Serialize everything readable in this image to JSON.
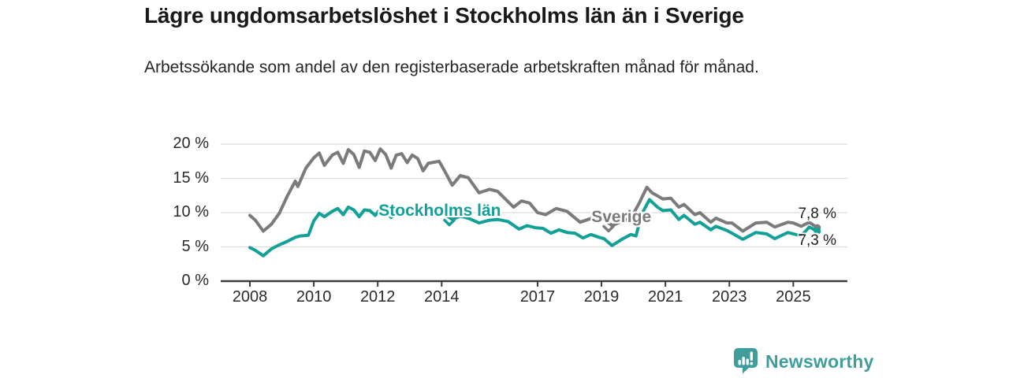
{
  "chart_data": {
    "type": "line",
    "title": "Lägre ungdomsarbetslöshet i Stockholms län än i Sverige",
    "subtitle": "Arbetssökande som andel av den registerbaserade arbetskraften månad för månad.",
    "unit": "%",
    "xlabel": "",
    "ylabel": "",
    "ylim": [
      0,
      20
    ],
    "x_range": [
      2008,
      2025.75
    ],
    "grid": "horizontal",
    "legend_position": "inline-annotations",
    "y_ticks": [
      {
        "value": 0,
        "label": "0 %"
      },
      {
        "value": 5,
        "label": "5 %"
      },
      {
        "value": 10,
        "label": "10 %"
      },
      {
        "value": 15,
        "label": "15 %"
      },
      {
        "value": 20,
        "label": "20 %"
      }
    ],
    "x_ticks": [
      {
        "value": 2008,
        "label": "2008"
      },
      {
        "value": 2010,
        "label": "2010"
      },
      {
        "value": 2012,
        "label": "2012"
      },
      {
        "value": 2014,
        "label": "2014"
      },
      {
        "value": 2017,
        "label": "2017"
      },
      {
        "value": 2019,
        "label": "2019"
      },
      {
        "value": 2021,
        "label": "2021"
      },
      {
        "value": 2023,
        "label": "2023"
      },
      {
        "value": 2025,
        "label": "2025"
      }
    ],
    "series": [
      {
        "name": "Sverige",
        "color": "#7b7b7b",
        "end_label": "7,8 %",
        "end_label_dy": -17,
        "points": [
          [
            2008.0,
            9.6
          ],
          [
            2008.17,
            8.9
          ],
          [
            2008.42,
            7.3
          ],
          [
            2008.67,
            8.3
          ],
          [
            2008.92,
            9.9
          ],
          [
            2009.17,
            12.4
          ],
          [
            2009.42,
            14.6
          ],
          [
            2009.5,
            13.8
          ],
          [
            2009.75,
            16.5
          ],
          [
            2010.0,
            18.0
          ],
          [
            2010.17,
            18.7
          ],
          [
            2010.33,
            16.9
          ],
          [
            2010.58,
            18.4
          ],
          [
            2010.75,
            18.8
          ],
          [
            2010.92,
            17.2
          ],
          [
            2011.08,
            19.2
          ],
          [
            2011.25,
            18.5
          ],
          [
            2011.42,
            16.6
          ],
          [
            2011.58,
            19.0
          ],
          [
            2011.75,
            18.8
          ],
          [
            2011.92,
            17.6
          ],
          [
            2012.08,
            19.3
          ],
          [
            2012.25,
            18.5
          ],
          [
            2012.42,
            16.5
          ],
          [
            2012.58,
            18.4
          ],
          [
            2012.75,
            18.6
          ],
          [
            2012.92,
            17.3
          ],
          [
            2013.08,
            18.4
          ],
          [
            2013.25,
            17.9
          ],
          [
            2013.42,
            16.1
          ],
          [
            2013.58,
            17.2
          ],
          [
            2013.92,
            17.5
          ],
          [
            2014.08,
            16.2
          ],
          [
            2014.33,
            14.0
          ],
          [
            2014.58,
            15.4
          ],
          [
            2014.83,
            15.1
          ],
          [
            2015.17,
            12.9
          ],
          [
            2015.5,
            13.4
          ],
          [
            2015.75,
            13.1
          ],
          [
            2016.25,
            10.8
          ],
          [
            2016.5,
            11.7
          ],
          [
            2016.75,
            11.4
          ],
          [
            2017.0,
            10.0
          ],
          [
            2017.25,
            9.7
          ],
          [
            2017.58,
            10.6
          ],
          [
            2017.92,
            10.2
          ],
          [
            2018.33,
            8.6
          ],
          [
            2018.83,
            9.4
          ],
          [
            2019.08,
            9.0
          ],
          [
            2019.33,
            8.1
          ],
          [
            2019.67,
            8.8
          ],
          [
            2019.92,
            9.2
          ],
          [
            2020.17,
            11.3
          ],
          [
            2020.42,
            13.7
          ],
          [
            2020.58,
            12.9
          ],
          [
            2020.92,
            12.0
          ],
          [
            2021.17,
            12.1
          ],
          [
            2021.42,
            10.8
          ],
          [
            2021.58,
            11.2
          ],
          [
            2021.92,
            9.7
          ],
          [
            2022.08,
            10.0
          ],
          [
            2022.42,
            8.6
          ],
          [
            2022.58,
            9.2
          ],
          [
            2022.92,
            8.5
          ],
          [
            2023.08,
            8.5
          ],
          [
            2023.42,
            7.3
          ],
          [
            2023.83,
            8.5
          ],
          [
            2024.17,
            8.6
          ],
          [
            2024.42,
            7.9
          ],
          [
            2024.83,
            8.6
          ],
          [
            2025.0,
            8.5
          ],
          [
            2025.25,
            8.0
          ],
          [
            2025.5,
            8.6
          ],
          [
            2025.75,
            7.8
          ]
        ]
      },
      {
        "name": "Stockholms län",
        "color": "#13a096",
        "end_label": "7,3 %",
        "end_label_dy": 13,
        "points": [
          [
            2008.0,
            4.9
          ],
          [
            2008.17,
            4.5
          ],
          [
            2008.42,
            3.7
          ],
          [
            2008.67,
            4.7
          ],
          [
            2008.92,
            5.3
          ],
          [
            2009.17,
            5.8
          ],
          [
            2009.42,
            6.4
          ],
          [
            2009.58,
            6.6
          ],
          [
            2009.83,
            6.7
          ],
          [
            2010.0,
            8.8
          ],
          [
            2010.17,
            9.9
          ],
          [
            2010.33,
            9.4
          ],
          [
            2010.58,
            10.2
          ],
          [
            2010.75,
            10.6
          ],
          [
            2010.92,
            9.7
          ],
          [
            2011.08,
            10.8
          ],
          [
            2011.25,
            10.4
          ],
          [
            2011.42,
            9.4
          ],
          [
            2011.58,
            10.4
          ],
          [
            2011.75,
            10.3
          ],
          [
            2011.92,
            9.6
          ],
          [
            2012.08,
            10.5
          ],
          [
            2012.25,
            10.1
          ],
          [
            2012.42,
            9.3
          ],
          [
            2012.58,
            10.1
          ],
          [
            2012.75,
            10.2
          ],
          [
            2012.92,
            9.6
          ],
          [
            2013.08,
            10.4
          ],
          [
            2013.25,
            10.5
          ],
          [
            2013.42,
            9.7
          ],
          [
            2013.58,
            10.9
          ],
          [
            2013.83,
            10.3
          ],
          [
            2014.08,
            9.8
          ],
          [
            2014.33,
            9.0
          ],
          [
            2014.58,
            9.5
          ],
          [
            2014.83,
            9.2
          ],
          [
            2015.17,
            8.5
          ],
          [
            2015.5,
            8.9
          ],
          [
            2015.75,
            9.0
          ],
          [
            2016.08,
            8.7
          ],
          [
            2016.42,
            7.6
          ],
          [
            2016.67,
            8.1
          ],
          [
            2016.92,
            7.8
          ],
          [
            2017.17,
            7.7
          ],
          [
            2017.42,
            7.0
          ],
          [
            2017.67,
            7.5
          ],
          [
            2017.92,
            7.1
          ],
          [
            2018.17,
            7.0
          ],
          [
            2018.42,
            6.3
          ],
          [
            2018.67,
            6.8
          ],
          [
            2018.92,
            6.4
          ],
          [
            2019.08,
            6.2
          ],
          [
            2019.33,
            5.2
          ],
          [
            2019.67,
            6.2
          ],
          [
            2019.92,
            6.8
          ],
          [
            2020.08,
            6.6
          ],
          [
            2020.25,
            9.7
          ],
          [
            2020.5,
            11.9
          ],
          [
            2020.75,
            10.8
          ],
          [
            2020.92,
            10.3
          ],
          [
            2021.17,
            10.4
          ],
          [
            2021.42,
            9.0
          ],
          [
            2021.58,
            9.6
          ],
          [
            2021.92,
            8.3
          ],
          [
            2022.08,
            8.6
          ],
          [
            2022.42,
            7.5
          ],
          [
            2022.58,
            8.0
          ],
          [
            2022.92,
            7.4
          ],
          [
            2023.08,
            7.0
          ],
          [
            2023.42,
            6.1
          ],
          [
            2023.83,
            7.1
          ],
          [
            2024.17,
            6.9
          ],
          [
            2024.42,
            6.2
          ],
          [
            2024.83,
            7.1
          ],
          [
            2025.0,
            6.9
          ],
          [
            2025.25,
            6.6
          ],
          [
            2025.5,
            7.9
          ],
          [
            2025.75,
            7.3
          ]
        ]
      }
    ],
    "annotations": [
      {
        "label": "Sverige",
        "color": "#7b7b7b",
        "year": 2019.62,
        "value": 9.3,
        "caret_year": 2019.22,
        "caret_value": 7.65
      },
      {
        "label": "Stockholms län",
        "color": "#13a096",
        "year": 2013.94,
        "value": 10.25,
        "caret_year": 2014.24,
        "caret_value": 8.55
      }
    ]
  },
  "footer": {
    "brand": "Newsworthy"
  },
  "colors": {
    "accent_teal": "#13a096",
    "line_gray": "#7b7b7b",
    "grid": "#dcdcdc",
    "axis": "#3b3b3b",
    "logo_teal": "#3f9e9b"
  }
}
